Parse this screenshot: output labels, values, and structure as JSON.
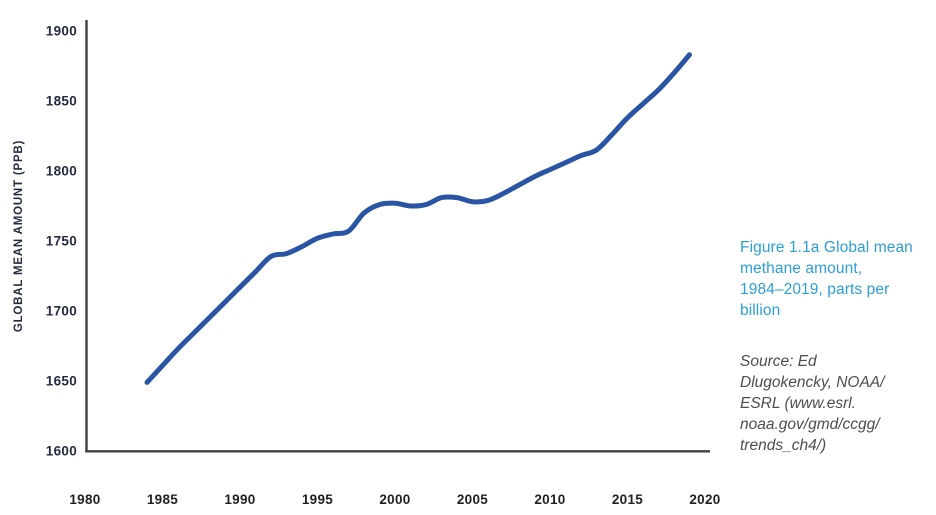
{
  "chart_data": {
    "type": "line",
    "series_name": "Global mean methane amount",
    "x": [
      1984,
      1985,
      1986,
      1987,
      1988,
      1989,
      1990,
      1991,
      1992,
      1993,
      1994,
      1995,
      1996,
      1997,
      1998,
      1999,
      2000,
      2001,
      2002,
      2003,
      2004,
      2005,
      2006,
      2007,
      2008,
      2009,
      2010,
      2011,
      2012,
      2013,
      2014,
      2015,
      2016,
      2017,
      2018,
      2019
    ],
    "values": [
      1649,
      1661,
      1673,
      1684,
      1695,
      1706,
      1717,
      1728,
      1739,
      1741,
      1746,
      1752,
      1755,
      1757,
      1770,
      1776,
      1777,
      1775,
      1776,
      1781,
      1781,
      1778,
      1779,
      1784,
      1790,
      1796,
      1801,
      1806,
      1811,
      1815,
      1826,
      1838,
      1848,
      1858,
      1870,
      1883
    ],
    "title": "",
    "xlabel": "",
    "ylabel": "GLOBAL MEAN AMOUNT (PPB)",
    "x_ticks": [
      1980,
      1985,
      1990,
      1995,
      2000,
      2005,
      2010,
      2015,
      2020
    ],
    "y_ticks": [
      1600,
      1650,
      1700,
      1750,
      1800,
      1850,
      1900
    ],
    "xlim": [
      1980,
      2022
    ],
    "ylim": [
      1600,
      1900
    ],
    "grid": false,
    "legend": "none",
    "line_color": "#2A55A4",
    "axis_color": "#414042",
    "x_tick_color": "#231F20",
    "y_tick_color": "#242B3E",
    "ylabel_color": "#242B3E"
  },
  "caption": {
    "title_lines": [
      "Figure 1.1a Global mean",
      "methane amount,",
      "1984–2019, parts per",
      "billion"
    ],
    "source_lines": [
      "Source: Ed",
      "Dlugokencky, NOAA/",
      "ESRL (www.esrl.",
      "noaa.gov/gmd/ccgg/",
      "trends_ch4/)"
    ]
  }
}
